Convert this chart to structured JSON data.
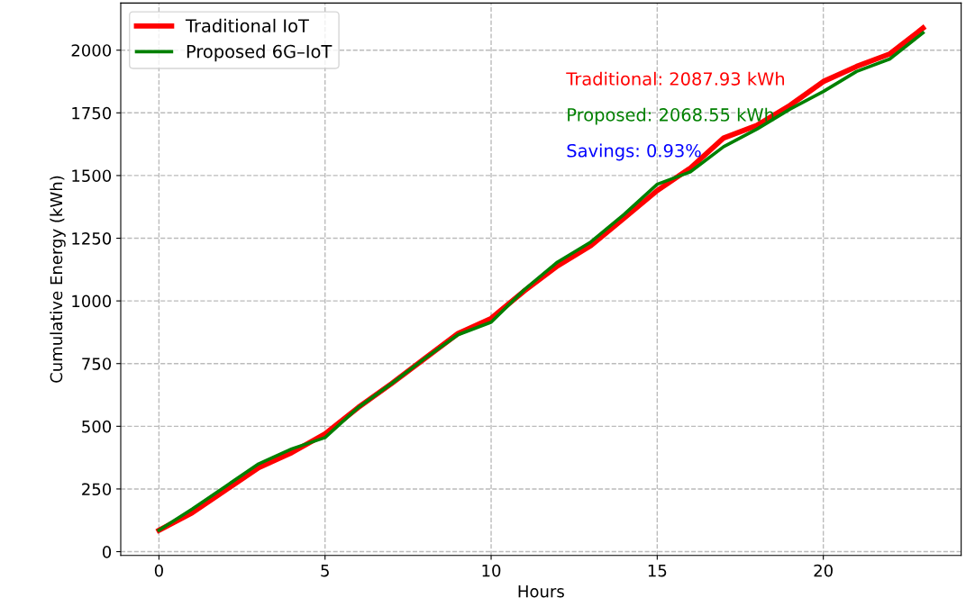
{
  "chart_data": {
    "type": "line",
    "xlabel": "Hours",
    "ylabel": "Cumulative Energy (kWh)",
    "x": [
      0,
      1,
      2,
      3,
      4,
      5,
      6,
      7,
      8,
      9,
      10,
      11,
      12,
      13,
      14,
      15,
      16,
      17,
      18,
      19,
      20,
      21,
      22,
      23
    ],
    "series": [
      {
        "name": "Traditional IoT",
        "color": "#ff0000",
        "values": [
          85,
          155,
          245,
          335,
          395,
          470,
          575,
          670,
          770,
          870,
          930,
          1040,
          1140,
          1220,
          1330,
          1440,
          1530,
          1650,
          1700,
          1780,
          1875,
          1935,
          1985,
          2088
        ]
      },
      {
        "name": "Proposed 6G–IoT",
        "color": "#008000",
        "values": [
          85,
          170,
          260,
          350,
          410,
          455,
          575,
          670,
          770,
          865,
          915,
          1045,
          1155,
          1235,
          1345,
          1465,
          1515,
          1615,
          1685,
          1765,
          1835,
          1915,
          1965,
          2069
        ]
      }
    ],
    "annotations": [
      "Traditional: 2087.93 kWh",
      "Proposed: 2068.55 kWh",
      "Savings: 0.93%"
    ],
    "xlim": [
      -1.15,
      24.15
    ],
    "ylim": [
      -15,
      2188
    ],
    "xticks": [
      0,
      5,
      10,
      15,
      20
    ],
    "yticks": [
      0,
      250,
      500,
      750,
      1000,
      1250,
      1500,
      1750,
      2000
    ],
    "grid": true,
    "legend": "top left",
    "line_style": "solid",
    "marker": "none"
  }
}
